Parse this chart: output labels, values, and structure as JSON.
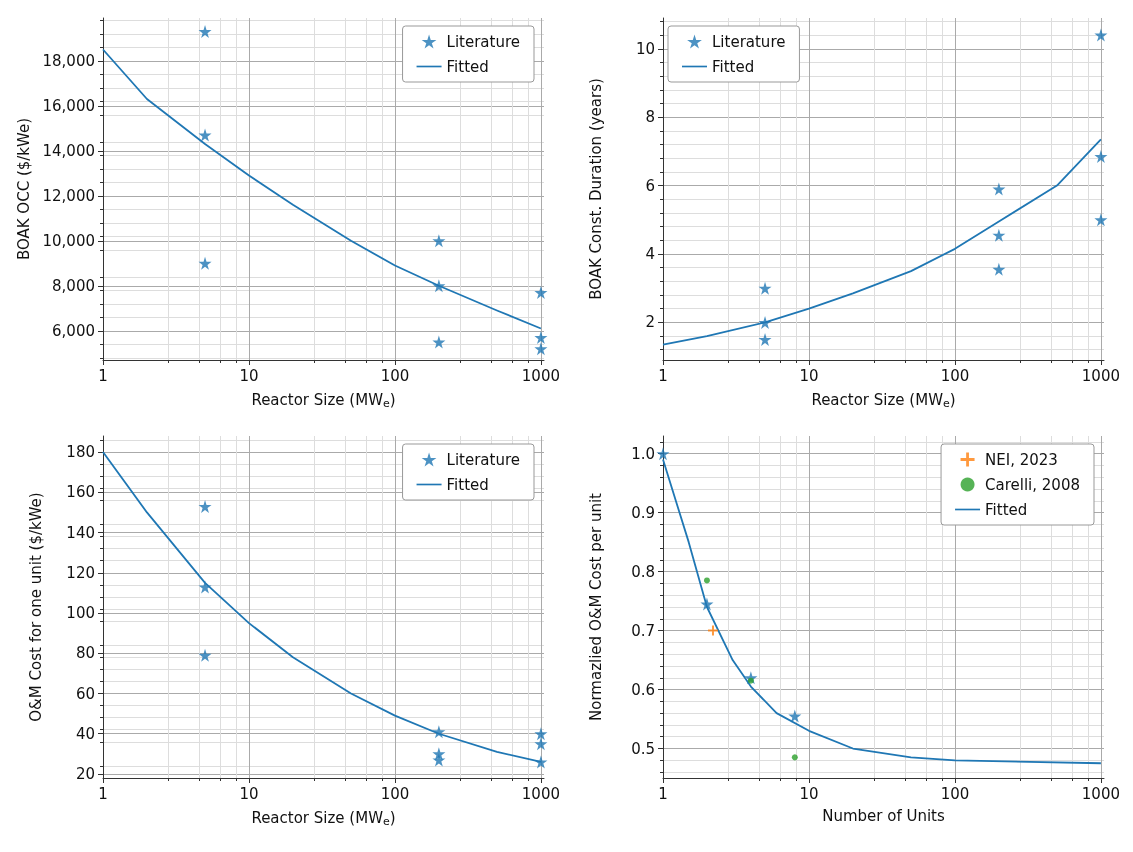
{
  "chart_data": [
    {
      "type": "scatter",
      "xlabel": "Reactor Size (MW$_{e}$)",
      "ylabel": "BOAK OCC ($/kWe)",
      "log": "x",
      "grid": true,
      "legend": "top right",
      "xlim": [
        1,
        1050
      ],
      "ylim": [
        4700,
        19900
      ],
      "xticks": [
        1,
        10,
        100,
        1000
      ],
      "yticks": [
        {
          "value": 6000,
          "label": "6,000"
        },
        {
          "value": 8000,
          "label": "8,000"
        },
        {
          "value": 10000,
          "label": "10,000"
        },
        {
          "value": 12000,
          "label": "12,000"
        },
        {
          "value": 14000,
          "label": "14,000"
        },
        {
          "value": 16000,
          "label": "16,000"
        },
        {
          "value": 18000,
          "label": "18,000"
        }
      ],
      "series": [
        {
          "name": "Literature",
          "marker": "star",
          "color": "#1f77b4",
          "x": [
            5,
            5,
            5,
            200,
            200,
            200,
            1000,
            1000,
            1000
          ],
          "values": [
            19300,
            14700,
            9000,
            10000,
            8000,
            5500,
            7700,
            5700,
            5200
          ]
        },
        {
          "name": "Fitted",
          "type": "line",
          "marker": "none",
          "line_style": "solid",
          "color": "#1f77b4",
          "x": [
            1,
            2,
            5,
            10,
            20,
            50,
            100,
            200,
            500,
            1000
          ],
          "values": [
            18500,
            16300,
            14300,
            12900,
            11600,
            10000,
            8900,
            8000,
            6900,
            6100
          ]
        }
      ]
    },
    {
      "type": "scatter",
      "xlabel": "Reactor Size (MW$_{e}$)",
      "ylabel": "BOAK Const. Duration (years)",
      "log": "x",
      "grid": true,
      "legend": "top left",
      "xlim": [
        1,
        1050
      ],
      "ylim": [
        0.9,
        10.9
      ],
      "xticks": [
        1,
        10,
        100,
        1000
      ],
      "yticks": [
        2,
        4,
        6,
        8,
        10
      ],
      "series": [
        {
          "name": "Literature",
          "marker": "star",
          "color": "#1f77b4",
          "x": [
            5,
            5,
            5,
            200,
            200,
            200,
            1000,
            1000,
            1000
          ],
          "values": [
            3.0,
            2.0,
            1.5,
            5.9,
            4.55,
            3.55,
            10.4,
            6.85,
            5.0
          ]
        },
        {
          "name": "Fitted",
          "type": "line",
          "marker": "none",
          "line_style": "solid",
          "color": "#1f77b4",
          "x": [
            1,
            2,
            5,
            10,
            20,
            50,
            100,
            200,
            500,
            1000
          ],
          "values": [
            1.35,
            1.6,
            2.0,
            2.4,
            2.85,
            3.5,
            4.15,
            4.95,
            6.0,
            7.35
          ]
        }
      ]
    },
    {
      "type": "scatter",
      "xlabel": "Reactor Size (MW$_{e}$)",
      "ylabel": "O&M Cost for one unit ($/kWe)",
      "log": "x",
      "grid": true,
      "legend": "top right",
      "xlim": [
        1,
        1050
      ],
      "ylim": [
        18,
        188
      ],
      "xticks": [
        1,
        10,
        100,
        1000
      ],
      "yticks": [
        20,
        40,
        60,
        80,
        100,
        120,
        140,
        160,
        180
      ],
      "series": [
        {
          "name": "Literature",
          "marker": "star",
          "color": "#1f77b4",
          "x": [
            5,
            5,
            5,
            200,
            200,
            200,
            1000,
            1000,
            1000
          ],
          "values": [
            153,
            113,
            79,
            41,
            30,
            27,
            40,
            35,
            26
          ]
        },
        {
          "name": "Fitted",
          "type": "line",
          "marker": "none",
          "line_style": "solid",
          "color": "#1f77b4",
          "x": [
            1,
            2,
            5,
            10,
            20,
            50,
            100,
            200,
            500,
            1000
          ],
          "values": [
            180,
            150,
            115,
            95,
            78,
            60,
            49,
            40,
            31,
            26
          ]
        }
      ]
    },
    {
      "type": "scatter",
      "xlabel": "Number of Units",
      "ylabel": "Normazlied O&M Cost per unit",
      "log": "x",
      "grid": true,
      "legend": "top right",
      "xlim": [
        1,
        1050
      ],
      "ylim": [
        0.45,
        1.03
      ],
      "xticks": [
        1,
        10,
        100,
        1000
      ],
      "yticks": [
        {
          "value": 0.5,
          "label": "0.5"
        },
        {
          "value": 0.6,
          "label": "0.6"
        },
        {
          "value": 0.7,
          "label": "0.7"
        },
        {
          "value": 0.8,
          "label": "0.8"
        },
        {
          "value": 0.9,
          "label": "0.9"
        },
        {
          "value": 1.0,
          "label": "1.0"
        }
      ],
      "series": [
        {
          "marker": "star",
          "color": "#1f77b4",
          "x": [
            1,
            2,
            4,
            8
          ],
          "values": [
            1.0,
            0.745,
            0.62,
            0.555
          ]
        },
        {
          "name": "NEI, 2023",
          "marker": "cross",
          "color": "#ff7f0e",
          "x": [
            2.2
          ],
          "values": [
            0.7
          ]
        },
        {
          "name": "Carelli, 2008",
          "marker": "circle",
          "color": "#2ca02c",
          "x": [
            2,
            4,
            8
          ],
          "values": [
            0.785,
            0.615,
            0.485
          ]
        },
        {
          "name": "Fitted",
          "type": "line",
          "marker": "none",
          "line_style": "solid",
          "color": "#1f77b4",
          "x": [
            1,
            1.5,
            2,
            3,
            4,
            6,
            10,
            20,
            50,
            100,
            1000
          ],
          "values": [
            0.99,
            0.85,
            0.74,
            0.65,
            0.605,
            0.56,
            0.53,
            0.5,
            0.485,
            0.48,
            0.475
          ]
        }
      ]
    }
  ]
}
